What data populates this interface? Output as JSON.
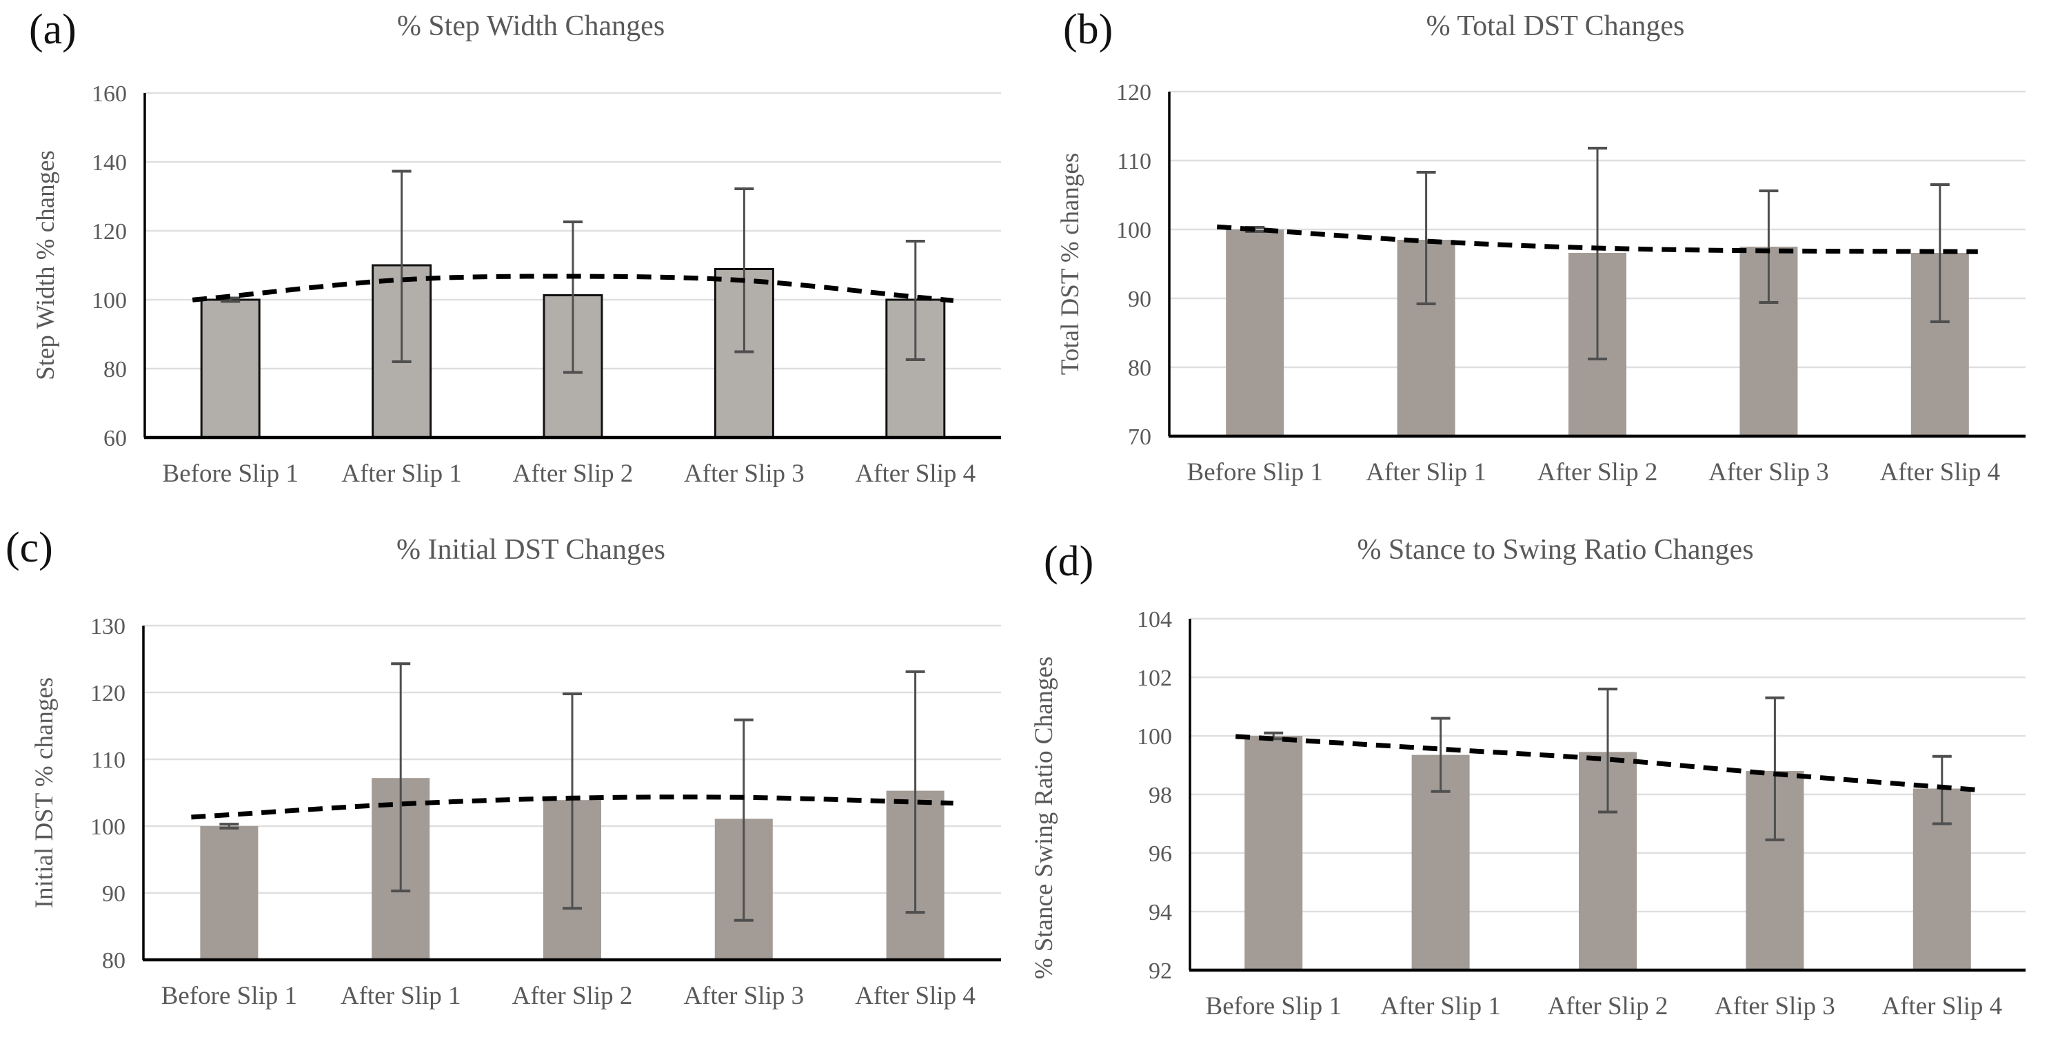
{
  "figure_caption": "",
  "categories": [
    "Before Slip 1",
    "After Slip 1",
    "After Slip 2",
    "After Slip 3",
    "After Slip 4"
  ],
  "style": {
    "background": "#ffffff",
    "bar_fill_panel_a": "#b2aeaa",
    "bar_fill": "#a29b96",
    "bar_outline": "#111111",
    "grid": "#dfdfdf",
    "axis": "#000000",
    "error_bar": "#4f4f4f",
    "text": "#595959",
    "trend": "#000000",
    "panel_letter": "#111111"
  },
  "chart_data": [
    {
      "type": "bar",
      "panel": "(a)",
      "title": "% Step Width Changes",
      "ylabel": "Step Width % changes",
      "xlabel": "",
      "categories": [
        "Before Slip 1",
        "After Slip 1",
        "After Slip 2",
        "After Slip 3",
        "After Slip 4"
      ],
      "values": [
        100,
        110,
        101.3,
        108.9,
        100
      ],
      "error_low": [
        99.5,
        82.0,
        78.9,
        84.9,
        82.6
      ],
      "error_high": [
        100.5,
        137.3,
        122.6,
        132.2,
        117.0
      ],
      "trendline": [
        101.0,
        105.8,
        106.8,
        105.6,
        100.8
      ],
      "ylim": [
        60,
        160
      ],
      "ytick_step": 20,
      "yticks": [
        60,
        80,
        100,
        120,
        140,
        160
      ],
      "grid": true,
      "legend": "none",
      "bar_outlined": true,
      "trend_style": "dashed"
    },
    {
      "type": "bar",
      "panel": "(b)",
      "title": "% Total DST Changes",
      "ylabel": "Total DST % changes",
      "xlabel": "",
      "categories": [
        "Before Slip 1",
        "After Slip 1",
        "After Slip 2",
        "After Slip 3",
        "After Slip 4"
      ],
      "values": [
        100,
        98.5,
        96.6,
        97.5,
        96.6
      ],
      "error_low": [
        99.7,
        89.2,
        81.2,
        89.4,
        86.6
      ],
      "error_high": [
        100.3,
        108.3,
        111.8,
        105.6,
        106.5
      ],
      "trendline": [
        100.0,
        98.3,
        97.3,
        96.9,
        96.8
      ],
      "ylim": [
        70,
        120
      ],
      "ytick_step": 10,
      "yticks": [
        70,
        80,
        90,
        100,
        110,
        120
      ],
      "grid": true,
      "legend": "none",
      "bar_outlined": false,
      "trend_style": "dashed"
    },
    {
      "type": "bar",
      "panel": "(c)",
      "title": "% Initial DST Changes",
      "ylabel": "Initial DST % changes",
      "xlabel": "",
      "categories": [
        "Before Slip 1",
        "After Slip 1",
        "After Slip 2",
        "After Slip 3",
        "After Slip 4"
      ],
      "values": [
        100,
        107.2,
        103.9,
        101.1,
        105.3
      ],
      "error_low": [
        99.7,
        90.3,
        87.7,
        85.9,
        87.1
      ],
      "error_high": [
        100.3,
        124.3,
        119.8,
        115.9,
        123.1
      ],
      "trendline": [
        101.7,
        103.3,
        104.2,
        104.3,
        103.6
      ],
      "ylim": [
        80,
        130
      ],
      "ytick_step": 10,
      "yticks": [
        80,
        90,
        100,
        110,
        120,
        130
      ],
      "grid": true,
      "legend": "none",
      "bar_outlined": false,
      "trend_style": "dashed"
    },
    {
      "type": "bar",
      "panel": "(d)",
      "title": "% Stance to Swing Ratio Changes",
      "ylabel": "% Stance Swing Ratio Changes",
      "xlabel": "",
      "categories": [
        "Before Slip 1",
        "After Slip 1",
        "After Slip 2",
        "After Slip 3",
        "After Slip 4"
      ],
      "values": [
        100,
        99.35,
        99.45,
        98.8,
        98.2
      ],
      "error_low": [
        99.9,
        98.1,
        97.4,
        96.45,
        97.0
      ],
      "error_high": [
        100.1,
        100.6,
        101.6,
        101.3,
        99.3
      ],
      "trendline": [
        99.9,
        99.55,
        99.2,
        98.7,
        98.25
      ],
      "ylim": [
        92,
        104
      ],
      "ytick_step": 2,
      "yticks": [
        92,
        94,
        96,
        98,
        100,
        102,
        104
      ],
      "grid": true,
      "legend": "none",
      "bar_outlined": false,
      "trend_style": "dashed"
    }
  ]
}
